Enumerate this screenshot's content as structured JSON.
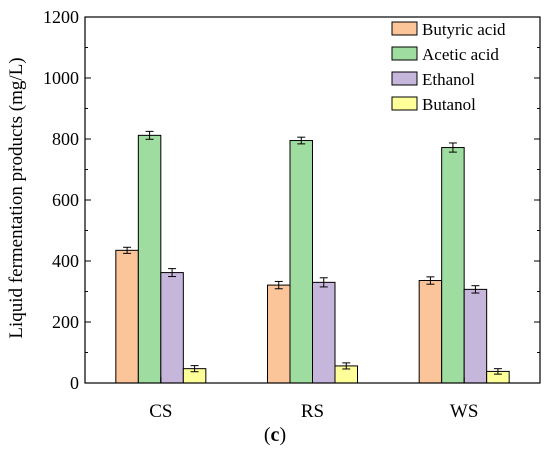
{
  "caption": {
    "open": "(",
    "letter": "c",
    "close": ")"
  },
  "chart_data": {
    "type": "bar",
    "categories": [
      "CS",
      "RS",
      "WS"
    ],
    "series": [
      {
        "name": "Butyric acid",
        "color": "#fbc499",
        "values": [
          435,
          321,
          336
        ],
        "errors": [
          10,
          12,
          12
        ]
      },
      {
        "name": "Acetic acid",
        "color": "#9fdc9f",
        "values": [
          812,
          795,
          772
        ],
        "errors": [
          13,
          11,
          15
        ]
      },
      {
        "name": "Ethanol",
        "color": "#c7b6dc",
        "values": [
          362,
          330,
          307
        ],
        "errors": [
          13,
          15,
          12
        ]
      },
      {
        "name": "Butanol",
        "color": "#ffff99",
        "values": [
          47,
          56,
          38
        ],
        "errors": [
          10,
          10,
          9
        ]
      }
    ],
    "title": "",
    "xlabel": "",
    "ylabel": "Liquid fermentation products (mg/L)",
    "ylim": [
      0,
      1200
    ],
    "yticks": [
      "0",
      "200",
      "400",
      "600",
      "800",
      "1000",
      "1200"
    ],
    "legend": "top-right",
    "grid": false
  }
}
